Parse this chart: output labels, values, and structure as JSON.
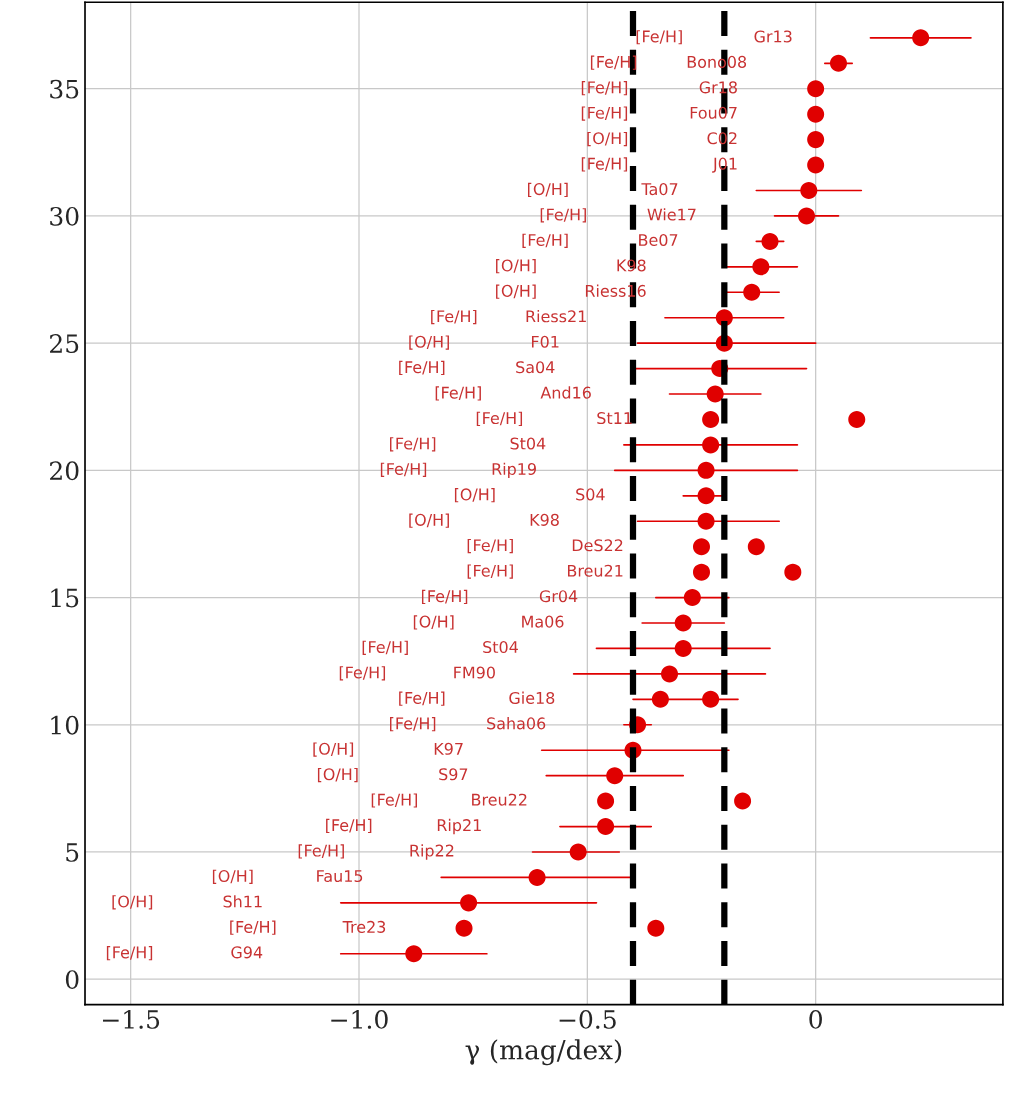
{
  "chart_data": {
    "type": "scatter",
    "xlabel": "γ (mag/dex)",
    "xlim": [
      -1.6,
      0.41
    ],
    "ylim": [
      -1,
      38.4
    ],
    "xticks": [
      {
        "value": -1.5,
        "label": "−1.5"
      },
      {
        "value": -1.0,
        "label": "−1.0"
      },
      {
        "value": -0.5,
        "label": "−0.5"
      },
      0
    ],
    "yticks": [
      0,
      5,
      10,
      15,
      20,
      25,
      30,
      35
    ],
    "grid": true,
    "legend": false,
    "marker": "circle",
    "series": [
      {
        "color": "#e00000",
        "x": [
          0.23,
          0.05,
          0,
          0,
          0,
          0,
          -0.015,
          -0.02,
          -0.1,
          -0.12,
          -0.14,
          -0.2,
          -0.2,
          -0.21,
          -0.22,
          -0.23,
          -0.23,
          -0.24,
          -0.24,
          -0.24,
          -0.25,
          -0.25,
          -0.27,
          -0.29,
          -0.29,
          -0.32,
          -0.34,
          -0.39,
          -0.4,
          -0.44,
          -0.46,
          -0.46,
          -0.52,
          -0.61,
          -0.76,
          -0.77,
          -0.88
        ],
        "values": [
          37,
          36,
          35,
          34,
          33,
          32,
          31,
          30,
          29,
          28,
          27,
          26,
          25,
          24,
          23,
          22,
          21,
          20,
          19,
          18,
          17,
          16,
          15,
          14,
          13,
          12,
          11,
          10,
          9,
          8,
          7,
          6,
          5,
          4,
          3,
          2,
          1
        ],
        "xerrors": [
          0.11,
          0.03,
          null,
          null,
          null,
          null,
          [
            -0.13,
            0.1
          ],
          [
            -0.09,
            0.05
          ],
          [
            -0.13,
            -0.07
          ],
          [
            -0.2,
            -0.04
          ],
          [
            -0.2,
            -0.08
          ],
          [
            -0.33,
            -0.07
          ],
          [
            -0.39,
            0
          ],
          0.19,
          [
            -0.32,
            -0.12
          ],
          null,
          [
            -0.42,
            -0.04
          ],
          [
            -0.44,
            -0.04
          ],
          [
            -0.29,
            -0.2
          ],
          [
            -0.39,
            -0.08
          ],
          null,
          null,
          [
            -0.35,
            -0.19
          ],
          [
            -0.38,
            -0.2
          ],
          [
            -0.48,
            -0.1
          ],
          [
            -0.53,
            -0.11
          ],
          [
            -0.4,
            -0.17
          ],
          [
            -0.42,
            -0.36
          ],
          [
            -0.6,
            -0.19
          ],
          [
            -0.59,
            -0.29
          ],
          null,
          [
            -0.56,
            -0.36
          ],
          [
            -0.62,
            -0.43
          ],
          0.21,
          [
            -1.04,
            -0.48
          ],
          null,
          [
            -1.04,
            -0.72
          ]
        ]
      },
      {
        "color": "#e00000",
        "x": [
          0.09,
          -0.13,
          -0.05,
          -0.23,
          -0.16,
          -0.35
        ],
        "values": [
          22,
          17,
          16,
          11,
          7,
          2
        ]
      }
    ],
    "ref_lines": [
      {
        "axis": "x",
        "value": -0.4,
        "color": "#000000",
        "line_style": "dashed"
      },
      {
        "axis": "x",
        "value": -0.2,
        "color": "#000000",
        "line_style": "dashed"
      }
    ],
    "annotations": [
      "[Fe/H]",
      "Gr13",
      "[Fe/H]",
      "Bono08",
      "[Fe/H]",
      "Gr18",
      "[Fe/H]",
      "Fou07",
      "[O/H]",
      "C02",
      "[Fe/H]",
      "J01",
      "[O/H]",
      "Ta07",
      "[Fe/H]",
      "Wie17",
      "[Fe/H]",
      "Be07",
      "[O/H]",
      "K98",
      "[O/H]",
      "Riess16",
      "[Fe/H]",
      "Riess21",
      "[O/H]",
      "F01",
      "[Fe/H]",
      "Sa04",
      "[Fe/H]",
      "And16",
      "[Fe/H]",
      "St11",
      "[Fe/H]",
      "St04",
      "[Fe/H]",
      "Rip19",
      "[O/H]",
      "S04",
      "[O/H]",
      "K98",
      "[Fe/H]",
      "DeS22",
      "[Fe/H]",
      "Breu21",
      "[Fe/H]",
      "Gr04",
      "[O/H]",
      "Ma06",
      "[Fe/H]",
      "St04",
      "[Fe/H]",
      "FM90",
      "[Fe/H]",
      "Gie18",
      "[Fe/H]",
      "Saha06",
      "[O/H]",
      "K97",
      "[O/H]",
      "S97",
      "[Fe/H]",
      "Breu22",
      "[Fe/H]",
      "Rip21",
      "[Fe/H]",
      "Rip22",
      "[O/H]",
      "Fau15",
      "[O/H]",
      "Sh11",
      "[Fe/H]",
      "Tre23",
      "[Fe/H]",
      "G94"
    ]
  }
}
